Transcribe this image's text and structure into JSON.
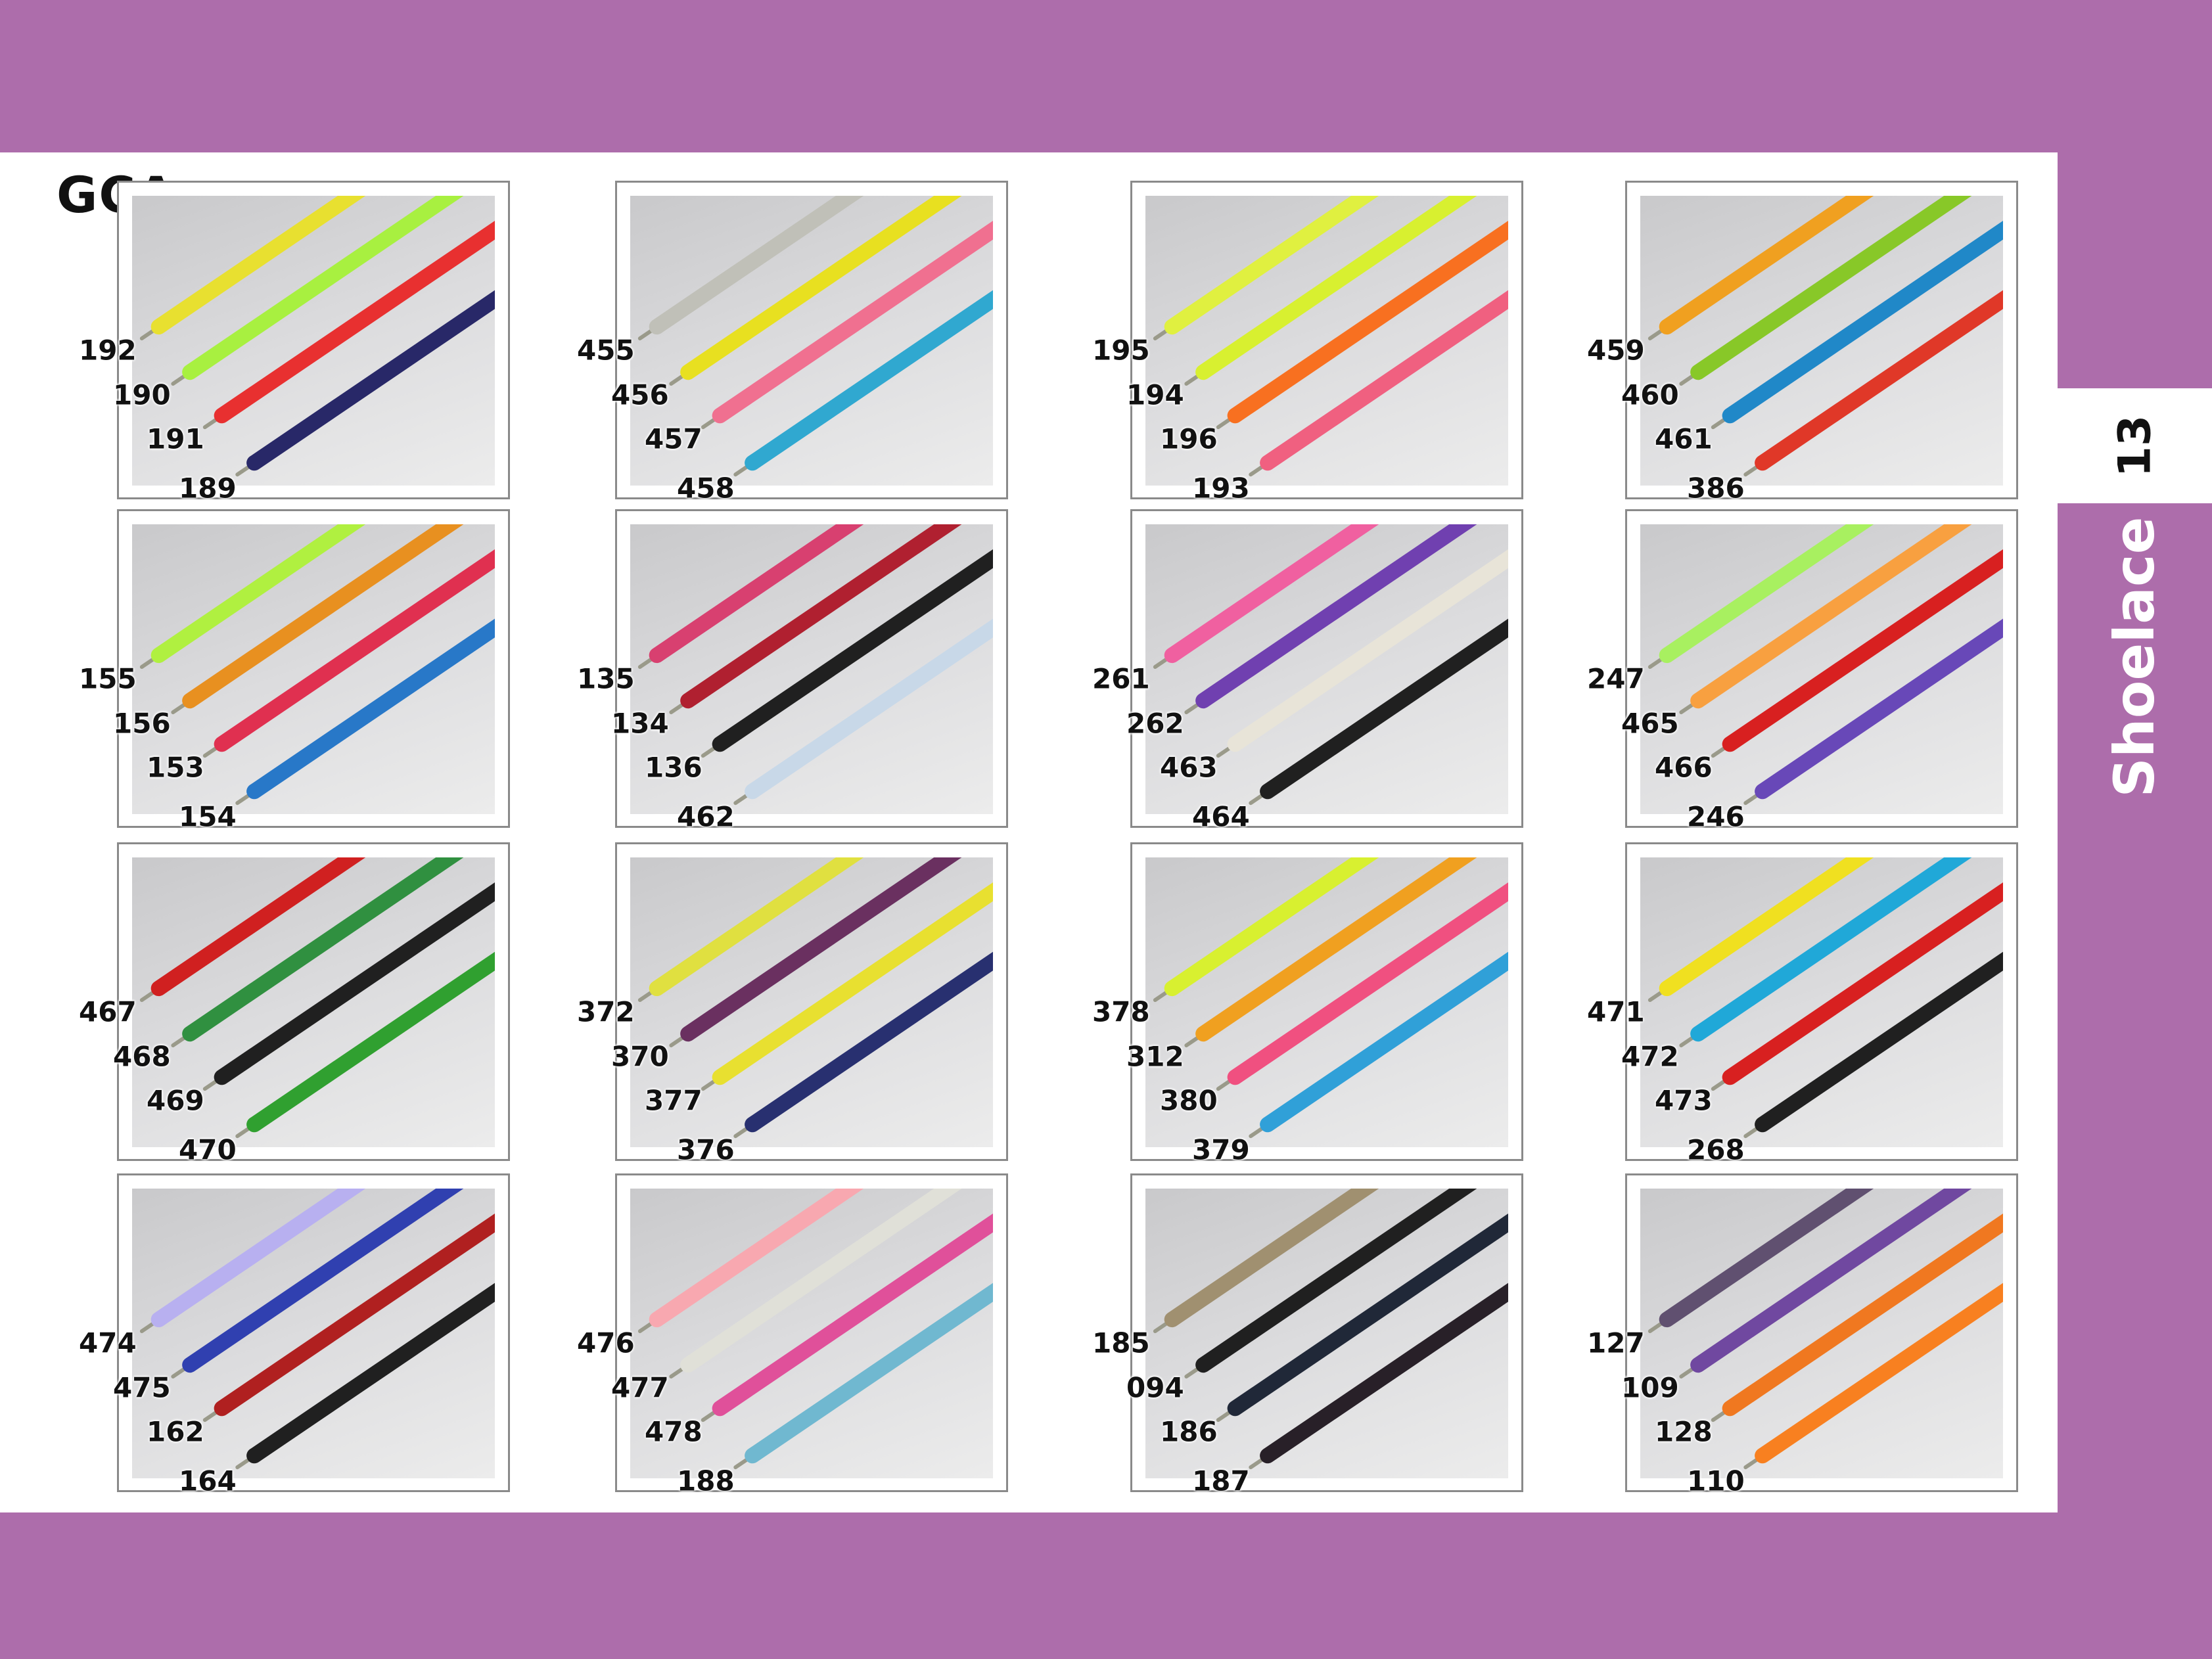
{
  "brand": "GCA",
  "page_number": "13",
  "section_title": "Shoelace",
  "colors": {
    "band": "#ad6dab",
    "frame": "#8a8a8a"
  },
  "cards": [
    {
      "laces": [
        {
          "code": "192",
          "color": "#e8e030"
        },
        {
          "code": "190",
          "color": "#a8f040"
        },
        {
          "code": "191",
          "color": "#e83030"
        },
        {
          "code": "189",
          "color": "#282868"
        }
      ]
    },
    {
      "laces": [
        {
          "code": "455",
          "color": "#c0c0b8"
        },
        {
          "code": "456",
          "color": "#e8e020"
        },
        {
          "code": "457",
          "color": "#f07090"
        },
        {
          "code": "458",
          "color": "#30a8d0"
        }
      ]
    },
    {
      "laces": [
        {
          "code": "195",
          "color": "#e0f040"
        },
        {
          "code": "194",
          "color": "#d8f030"
        },
        {
          "code": "196",
          "color": "#f87020"
        },
        {
          "code": "193",
          "color": "#f06080"
        }
      ]
    },
    {
      "laces": [
        {
          "code": "459",
          "color": "#f0a020"
        },
        {
          "code": "460",
          "color": "#88c828"
        },
        {
          "code": "461",
          "color": "#2088c8"
        },
        {
          "code": "386",
          "color": "#e03828"
        }
      ]
    },
    {
      "laces": [
        {
          "code": "155",
          "color": "#b0f040"
        },
        {
          "code": "156",
          "color": "#e89020"
        },
        {
          "code": "153",
          "color": "#e03050"
        },
        {
          "code": "154",
          "color": "#2878c8"
        }
      ]
    },
    {
      "laces": [
        {
          "code": "135",
          "color": "#d84070"
        },
        {
          "code": "134",
          "color": "#b02030"
        },
        {
          "code": "136",
          "color": "#202020"
        },
        {
          "code": "462",
          "color": "#c8d8e8"
        }
      ]
    },
    {
      "laces": [
        {
          "code": "261",
          "color": "#f060a0"
        },
        {
          "code": "262",
          "color": "#7040b0"
        },
        {
          "code": "463",
          "color": "#e8e4d8"
        },
        {
          "code": "464",
          "color": "#202020"
        }
      ]
    },
    {
      "laces": [
        {
          "code": "247",
          "color": "#a8f060"
        },
        {
          "code": "465",
          "color": "#f8a040"
        },
        {
          "code": "466",
          "color": "#d82020"
        },
        {
          "code": "246",
          "color": "#6848b8"
        }
      ]
    },
    {
      "laces": [
        {
          "code": "467",
          "color": "#d02020"
        },
        {
          "code": "468",
          "color": "#309040"
        },
        {
          "code": "469",
          "color": "#202020"
        },
        {
          "code": "470",
          "color": "#30a030"
        }
      ]
    },
    {
      "laces": [
        {
          "code": "372",
          "color": "#e0e040"
        },
        {
          "code": "370",
          "color": "#6a3060"
        },
        {
          "code": "377",
          "color": "#e8e030"
        },
        {
          "code": "376",
          "color": "#283070"
        }
      ]
    },
    {
      "laces": [
        {
          "code": "378",
          "color": "#d8f030"
        },
        {
          "code": "312",
          "color": "#f0a020"
        },
        {
          "code": "380",
          "color": "#f05080"
        },
        {
          "code": "379",
          "color": "#30a0d8"
        }
      ]
    },
    {
      "laces": [
        {
          "code": "471",
          "color": "#f0e020"
        },
        {
          "code": "472",
          "color": "#20a8d8"
        },
        {
          "code": "473",
          "color": "#d82020"
        },
        {
          "code": "268",
          "color": "#202020"
        }
      ]
    },
    {
      "laces": [
        {
          "code": "474",
          "color": "#b8b0f0"
        },
        {
          "code": "475",
          "color": "#3040b0"
        },
        {
          "code": "162",
          "color": "#b02020"
        },
        {
          "code": "164",
          "color": "#202020"
        }
      ]
    },
    {
      "laces": [
        {
          "code": "476",
          "color": "#f8a8b0"
        },
        {
          "code": "477",
          "color": "#e0e0d8"
        },
        {
          "code": "478",
          "color": "#e0509a"
        },
        {
          "code": "188",
          "color": "#70b8d0"
        }
      ]
    },
    {
      "laces": [
        {
          "code": "185",
          "color": "#a09070"
        },
        {
          "code": "094",
          "color": "#202020"
        },
        {
          "code": "186",
          "color": "#202838"
        },
        {
          "code": "187",
          "color": "#282028"
        }
      ]
    },
    {
      "laces": [
        {
          "code": "127",
          "color": "#605070"
        },
        {
          "code": "109",
          "color": "#7048a0"
        },
        {
          "code": "128",
          "color": "#f07820"
        },
        {
          "code": "110",
          "color": "#f88020"
        }
      ]
    }
  ]
}
